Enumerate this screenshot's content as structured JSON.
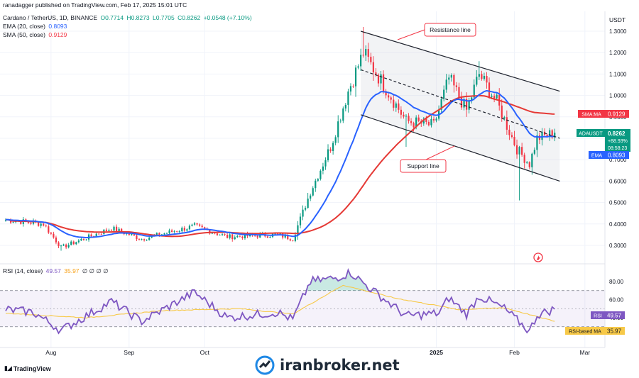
{
  "publisher": "ranadagger published on TradingView.com, Feb 17, 2025 15:01 UTC",
  "legend": {
    "symbol": "Cardano / TetherUS, 1D, BINANCE",
    "open": "O0.7714",
    "high": "H0.8273",
    "low": "L0.7705",
    "close": "C0.8262",
    "change": "+0.0548 (+7.10%)",
    "ema_label": "EMA (20, close)",
    "ema_value": "0.8093",
    "sma_label": "SMA (50, close)",
    "sma_value": "0.9129"
  },
  "rsi_legend": {
    "label": "RSI (14, close)",
    "value": "49.57",
    "ma": "35.97",
    "zeros": "∅ ∅ ∅ ∅"
  },
  "annotations": {
    "resistance": "Resistance line",
    "support": "Support line"
  },
  "price_axis": {
    "unit": "USDT",
    "ticks": [
      "1.3000",
      "1.2000",
      "1.1000",
      "1.0000",
      "0.9000",
      "0.8000",
      "0.7000",
      "0.6000",
      "0.5000",
      "0.4000",
      "0.3000"
    ],
    "sma_tag": "SMA:MA",
    "sma_value": "0.9129",
    "price_tag": "ADAUSDT",
    "price_value": "0.8262",
    "price_change": "+88.93%",
    "countdown": "08:58:23",
    "ema_tag": "EMA",
    "ema_value": "0.8093"
  },
  "rsi_axis": {
    "ticks": [
      "80.00",
      "60.00",
      "40.00"
    ],
    "rsi_tag": "RSI",
    "rsi_value": "49.57",
    "ma_tag": "RSI-based MA",
    "ma_value": "35.97"
  },
  "time_axis": {
    "labels": [
      "Aug",
      "Sep",
      "Oct",
      "2025",
      "Feb",
      "Mar"
    ]
  },
  "branding": {
    "tradingview": "TradingView",
    "watermark": "iranbroker.net"
  },
  "colors": {
    "up": "#089981",
    "down": "#f23645",
    "ema": "#2962ff",
    "sma": "#e53935",
    "rsi": "#7e57c2",
    "rsi_ma": "#f7c948",
    "channel": "#1e222d"
  },
  "chart_data": [
    {
      "type": "candlestick",
      "title": "Cardano / TetherUS, 1D, BINANCE",
      "x_range": [
        "2024-07-14",
        "2025-03-05"
      ],
      "ylim": [
        0.25,
        1.33
      ],
      "scale": "log",
      "price_anchors": [
        {
          "date": "2024-07-14",
          "price": 0.42
        },
        {
          "date": "2024-07-29",
          "price": 0.4
        },
        {
          "date": "2024-08-05",
          "price": 0.29
        },
        {
          "date": "2024-08-25",
          "price": 0.38
        },
        {
          "date": "2024-09-06",
          "price": 0.33
        },
        {
          "date": "2024-09-27",
          "price": 0.39
        },
        {
          "date": "2024-10-10",
          "price": 0.34
        },
        {
          "date": "2024-10-30",
          "price": 0.35
        },
        {
          "date": "2024-11-05",
          "price": 0.33
        },
        {
          "date": "2024-11-12",
          "price": 0.55
        },
        {
          "date": "2024-11-20",
          "price": 0.76
        },
        {
          "date": "2024-11-27",
          "price": 1.02
        },
        {
          "date": "2024-12-03",
          "price": 1.2
        },
        {
          "date": "2024-12-10",
          "price": 1.07
        },
        {
          "date": "2024-12-20",
          "price": 0.88
        },
        {
          "date": "2024-12-31",
          "price": 0.86
        },
        {
          "date": "2025-01-06",
          "price": 1.08
        },
        {
          "date": "2025-01-13",
          "price": 0.93
        },
        {
          "date": "2025-01-18",
          "price": 1.1
        },
        {
          "date": "2025-01-25",
          "price": 0.97
        },
        {
          "date": "2025-02-02",
          "price": 0.75
        },
        {
          "date": "2025-02-07",
          "price": 0.68
        },
        {
          "date": "2025-02-10",
          "price": 0.8
        },
        {
          "date": "2025-02-17",
          "price": 0.8262
        }
      ],
      "ema20_last": 0.8093,
      "sma50_last": 0.9129,
      "channel": {
        "resistance": [
          {
            "date": "2024-12-02",
            "price": 1.3
          },
          {
            "date": "2025-02-19",
            "price": 1.02
          }
        ],
        "midline": [
          {
            "date": "2024-12-02",
            "price": 1.12
          },
          {
            "date": "2025-02-19",
            "price": 0.8
          }
        ],
        "support": [
          {
            "date": "2024-12-02",
            "price": 0.91
          },
          {
            "date": "2025-02-19",
            "price": 0.6
          }
        ]
      }
    },
    {
      "type": "line",
      "title": "RSI (14, close)",
      "ylim": [
        20,
        95
      ],
      "levels": [
        70,
        50,
        30
      ],
      "series": [
        {
          "name": "RSI",
          "anchors": [
            {
              "date": "2024-07-14",
              "value": 49
            },
            {
              "date": "2024-07-25",
              "value": 46
            },
            {
              "date": "2024-08-05",
              "value": 26
            },
            {
              "date": "2024-08-25",
              "value": 58
            },
            {
              "date": "2024-09-06",
              "value": 36
            },
            {
              "date": "2024-09-27",
              "value": 68
            },
            {
              "date": "2024-10-10",
              "value": 40
            },
            {
              "date": "2024-10-30",
              "value": 46
            },
            {
              "date": "2024-11-05",
              "value": 38
            },
            {
              "date": "2024-11-12",
              "value": 80
            },
            {
              "date": "2024-11-22",
              "value": 84
            },
            {
              "date": "2024-11-28",
              "value": 90
            },
            {
              "date": "2024-12-05",
              "value": 74
            },
            {
              "date": "2024-12-20",
              "value": 42
            },
            {
              "date": "2025-01-02",
              "value": 45
            },
            {
              "date": "2025-01-06",
              "value": 62
            },
            {
              "date": "2025-01-13",
              "value": 44
            },
            {
              "date": "2025-01-18",
              "value": 64
            },
            {
              "date": "2025-01-28",
              "value": 50
            },
            {
              "date": "2025-02-07",
              "value": 25
            },
            {
              "date": "2025-02-10",
              "value": 43
            },
            {
              "date": "2025-02-17",
              "value": 49.57
            }
          ]
        },
        {
          "name": "RSI-based MA",
          "anchors": [
            {
              "date": "2024-07-14",
              "value": 45
            },
            {
              "date": "2024-08-15",
              "value": 40
            },
            {
              "date": "2024-09-15",
              "value": 48
            },
            {
              "date": "2024-10-15",
              "value": 50
            },
            {
              "date": "2024-11-05",
              "value": 44
            },
            {
              "date": "2024-11-25",
              "value": 76
            },
            {
              "date": "2024-12-15",
              "value": 62
            },
            {
              "date": "2025-01-10",
              "value": 49
            },
            {
              "date": "2025-01-28",
              "value": 51
            },
            {
              "date": "2025-02-17",
              "value": 35.97
            }
          ]
        }
      ]
    }
  ]
}
